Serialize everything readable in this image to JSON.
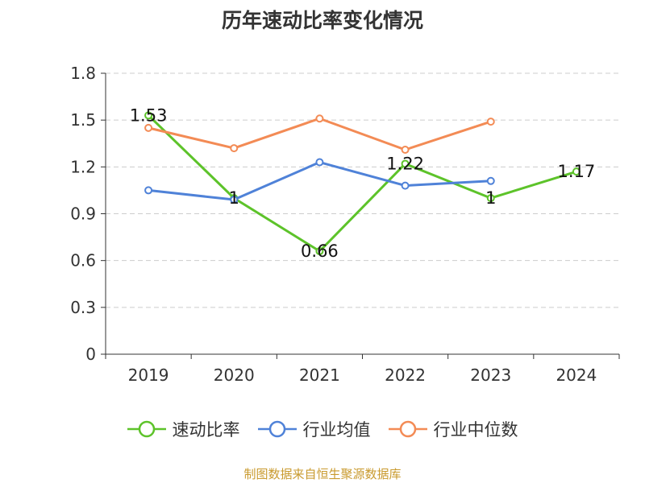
{
  "chart_data": {
    "type": "line",
    "title": "历年速动比率变化情况",
    "categories": [
      "2019",
      "2020",
      "2021",
      "2022",
      "2023",
      "2024"
    ],
    "ylim": [
      0,
      1.8
    ],
    "yticks": [
      "0",
      "0.3",
      "0.6",
      "0.9",
      "1.2",
      "1.5",
      "1.8"
    ],
    "grid": true,
    "legend_position": "bottom",
    "series": [
      {
        "name": "速动比率",
        "color": "#5dc32a",
        "values": [
          1.53,
          1.0,
          0.66,
          1.22,
          1.0,
          1.17
        ],
        "labels": [
          "1.53",
          "1",
          "0.66",
          "1.22",
          "1",
          "1.17"
        ]
      },
      {
        "name": "行业均值",
        "color": "#4f82d8",
        "values": [
          1.05,
          0.99,
          1.23,
          1.08,
          1.11,
          null
        ]
      },
      {
        "name": "行业中位数",
        "color": "#f38b55",
        "values": [
          1.45,
          1.32,
          1.51,
          1.31,
          1.49,
          null
        ]
      }
    ]
  },
  "footer": {
    "source": "制图数据来自恒生聚源数据库"
  }
}
